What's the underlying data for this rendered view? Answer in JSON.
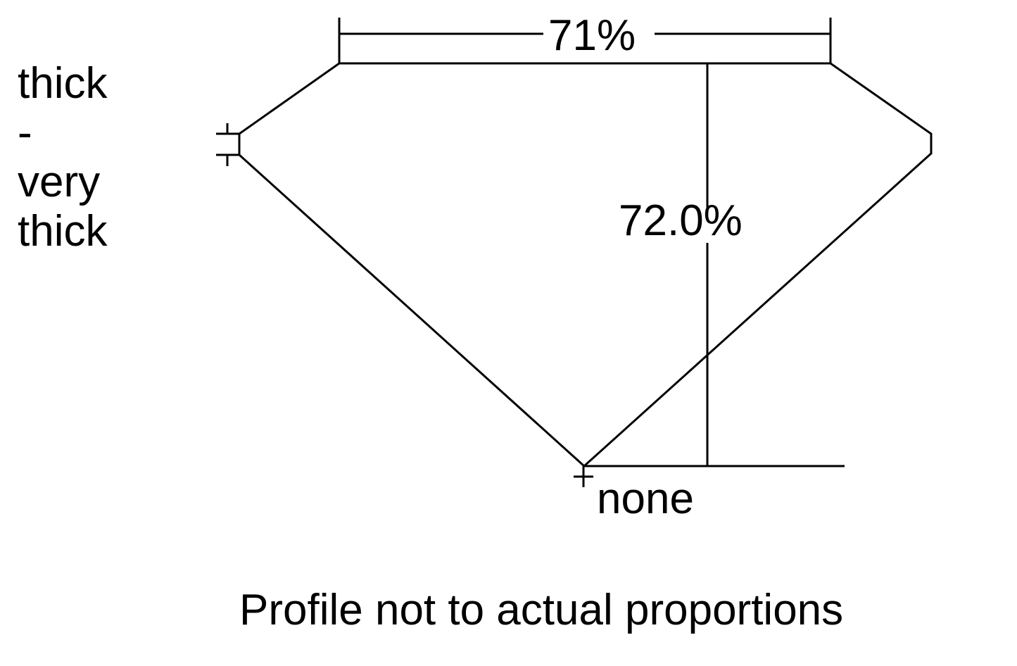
{
  "diagram": {
    "table_percent": "71%",
    "depth_percent": "72.0%",
    "girdle_label": [
      "thick",
      "-",
      "very",
      "thick"
    ],
    "culet_label": "none",
    "footnote": "Profile not to actual proportions",
    "line_color": "#000000"
  }
}
